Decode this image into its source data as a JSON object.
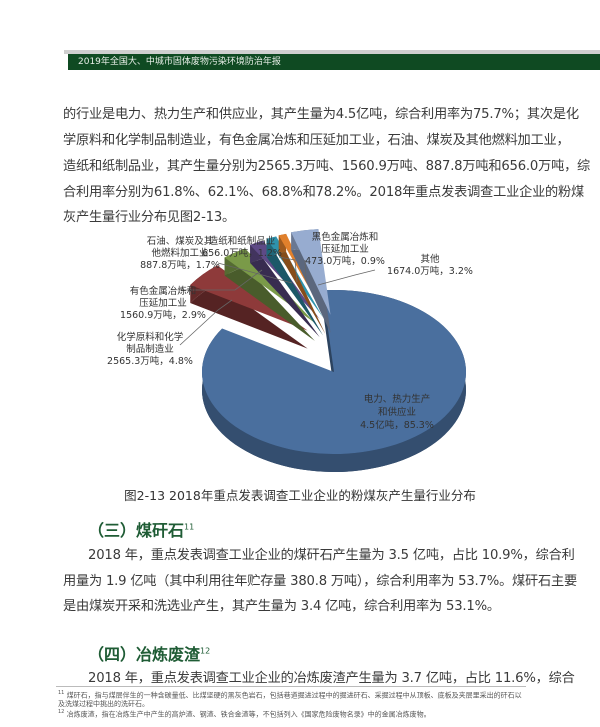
{
  "header": {
    "title": "2019年全国大、中城市固体废物污染环境防治年报"
  },
  "paragraph1": [
    "的行业是电力、热力生产和供应业，其产生量为4.5亿吨，综合利用率为75.7%；其次是化",
    "学原料和化学制品制造业，有色金属冶炼和压延加工业，石油、煤炭及其他燃料加工业，",
    "造纸和纸制品业，其产生量分别为2565.3万吨、1560.9万吨、887.8万吨和656.0万吨，综",
    "合利用率分别为61.8%、62.1%、68.8%和78.2%。2018年重点发表调查工业企业的粉煤",
    "灰产生量行业分布见图2-13。"
  ],
  "chart_data": {
    "type": "pie",
    "style": "3d-exploded",
    "title": "图2-13 2018年重点发表调查工业企业的粉煤灰产生量行业分布",
    "slices": [
      {
        "name": "电力、热力生产和供应业",
        "value_label": "4.5亿吨，85.3%",
        "percent": 85.3,
        "color": "#4a6f9e"
      },
      {
        "name": "化学原料和化学制品制造业",
        "value_label": "2565.3万吨，4.8%",
        "percent": 4.8,
        "color": "#8e3a3a"
      },
      {
        "name": "有色金属冶炼和压延加工业",
        "value_label": "1560.9万吨，2.9%",
        "percent": 2.9,
        "color": "#7a9a48"
      },
      {
        "name": "石油、煤炭及其他燃料加工业",
        "value_label": "887.8万吨，1.7%",
        "percent": 1.7,
        "color": "#5e4a86"
      },
      {
        "name": "造纸和纸制品业",
        "value_label": "656.0万吨，1.2%",
        "percent": 1.2,
        "color": "#2e93ad"
      },
      {
        "name": "黑色金属冶炼和压延加工业",
        "value_label": "473.0万吨，0.9%",
        "percent": 0.9,
        "color": "#e0802c"
      },
      {
        "name": "其他",
        "value_label": "1674.0万吨，3.2%",
        "percent": 3.2,
        "color": "#97acd0"
      }
    ]
  },
  "section3": {
    "heading": "（三）煤矸石",
    "note": "11",
    "lines": [
      "2018 年，重点发表调查工业企业的煤矸石产生量为 3.5 亿吨，占比 10.9%，综合利",
      "用量为 1.9 亿吨（其中利用往年贮存量 380.8 万吨），综合利用率为 53.7%。煤矸石主要",
      "是由煤炭开采和洗选业产生，其产生量为 3.4 亿吨，综合利用率为 53.1%。"
    ]
  },
  "section4": {
    "heading": "（四）冶炼废渣",
    "note": "12",
    "lines": [
      "2018 年，重点发表调查工业企业的冶炼废渣产生量为 3.7 亿吨，占比 11.6%，综合"
    ]
  },
  "footnotes": [
    {
      "num": "11",
      "text": "煤矸石，指与煤层伴生的一种含碳量低、比煤坚硬的黑灰色岩石，包括巷道掘进过程中的掘进矸石、采掘过程中从顶板、底板及夹层里采出的矸石以及洗煤过程中挑出的洗矸石。"
    },
    {
      "num": "12",
      "text": "冶炼废渣，指在冶炼生产中产生的高炉渣、钢渣、铁合金渣等，不包括列入《国家危险废物名录》中的金属冶炼废物。"
    }
  ]
}
